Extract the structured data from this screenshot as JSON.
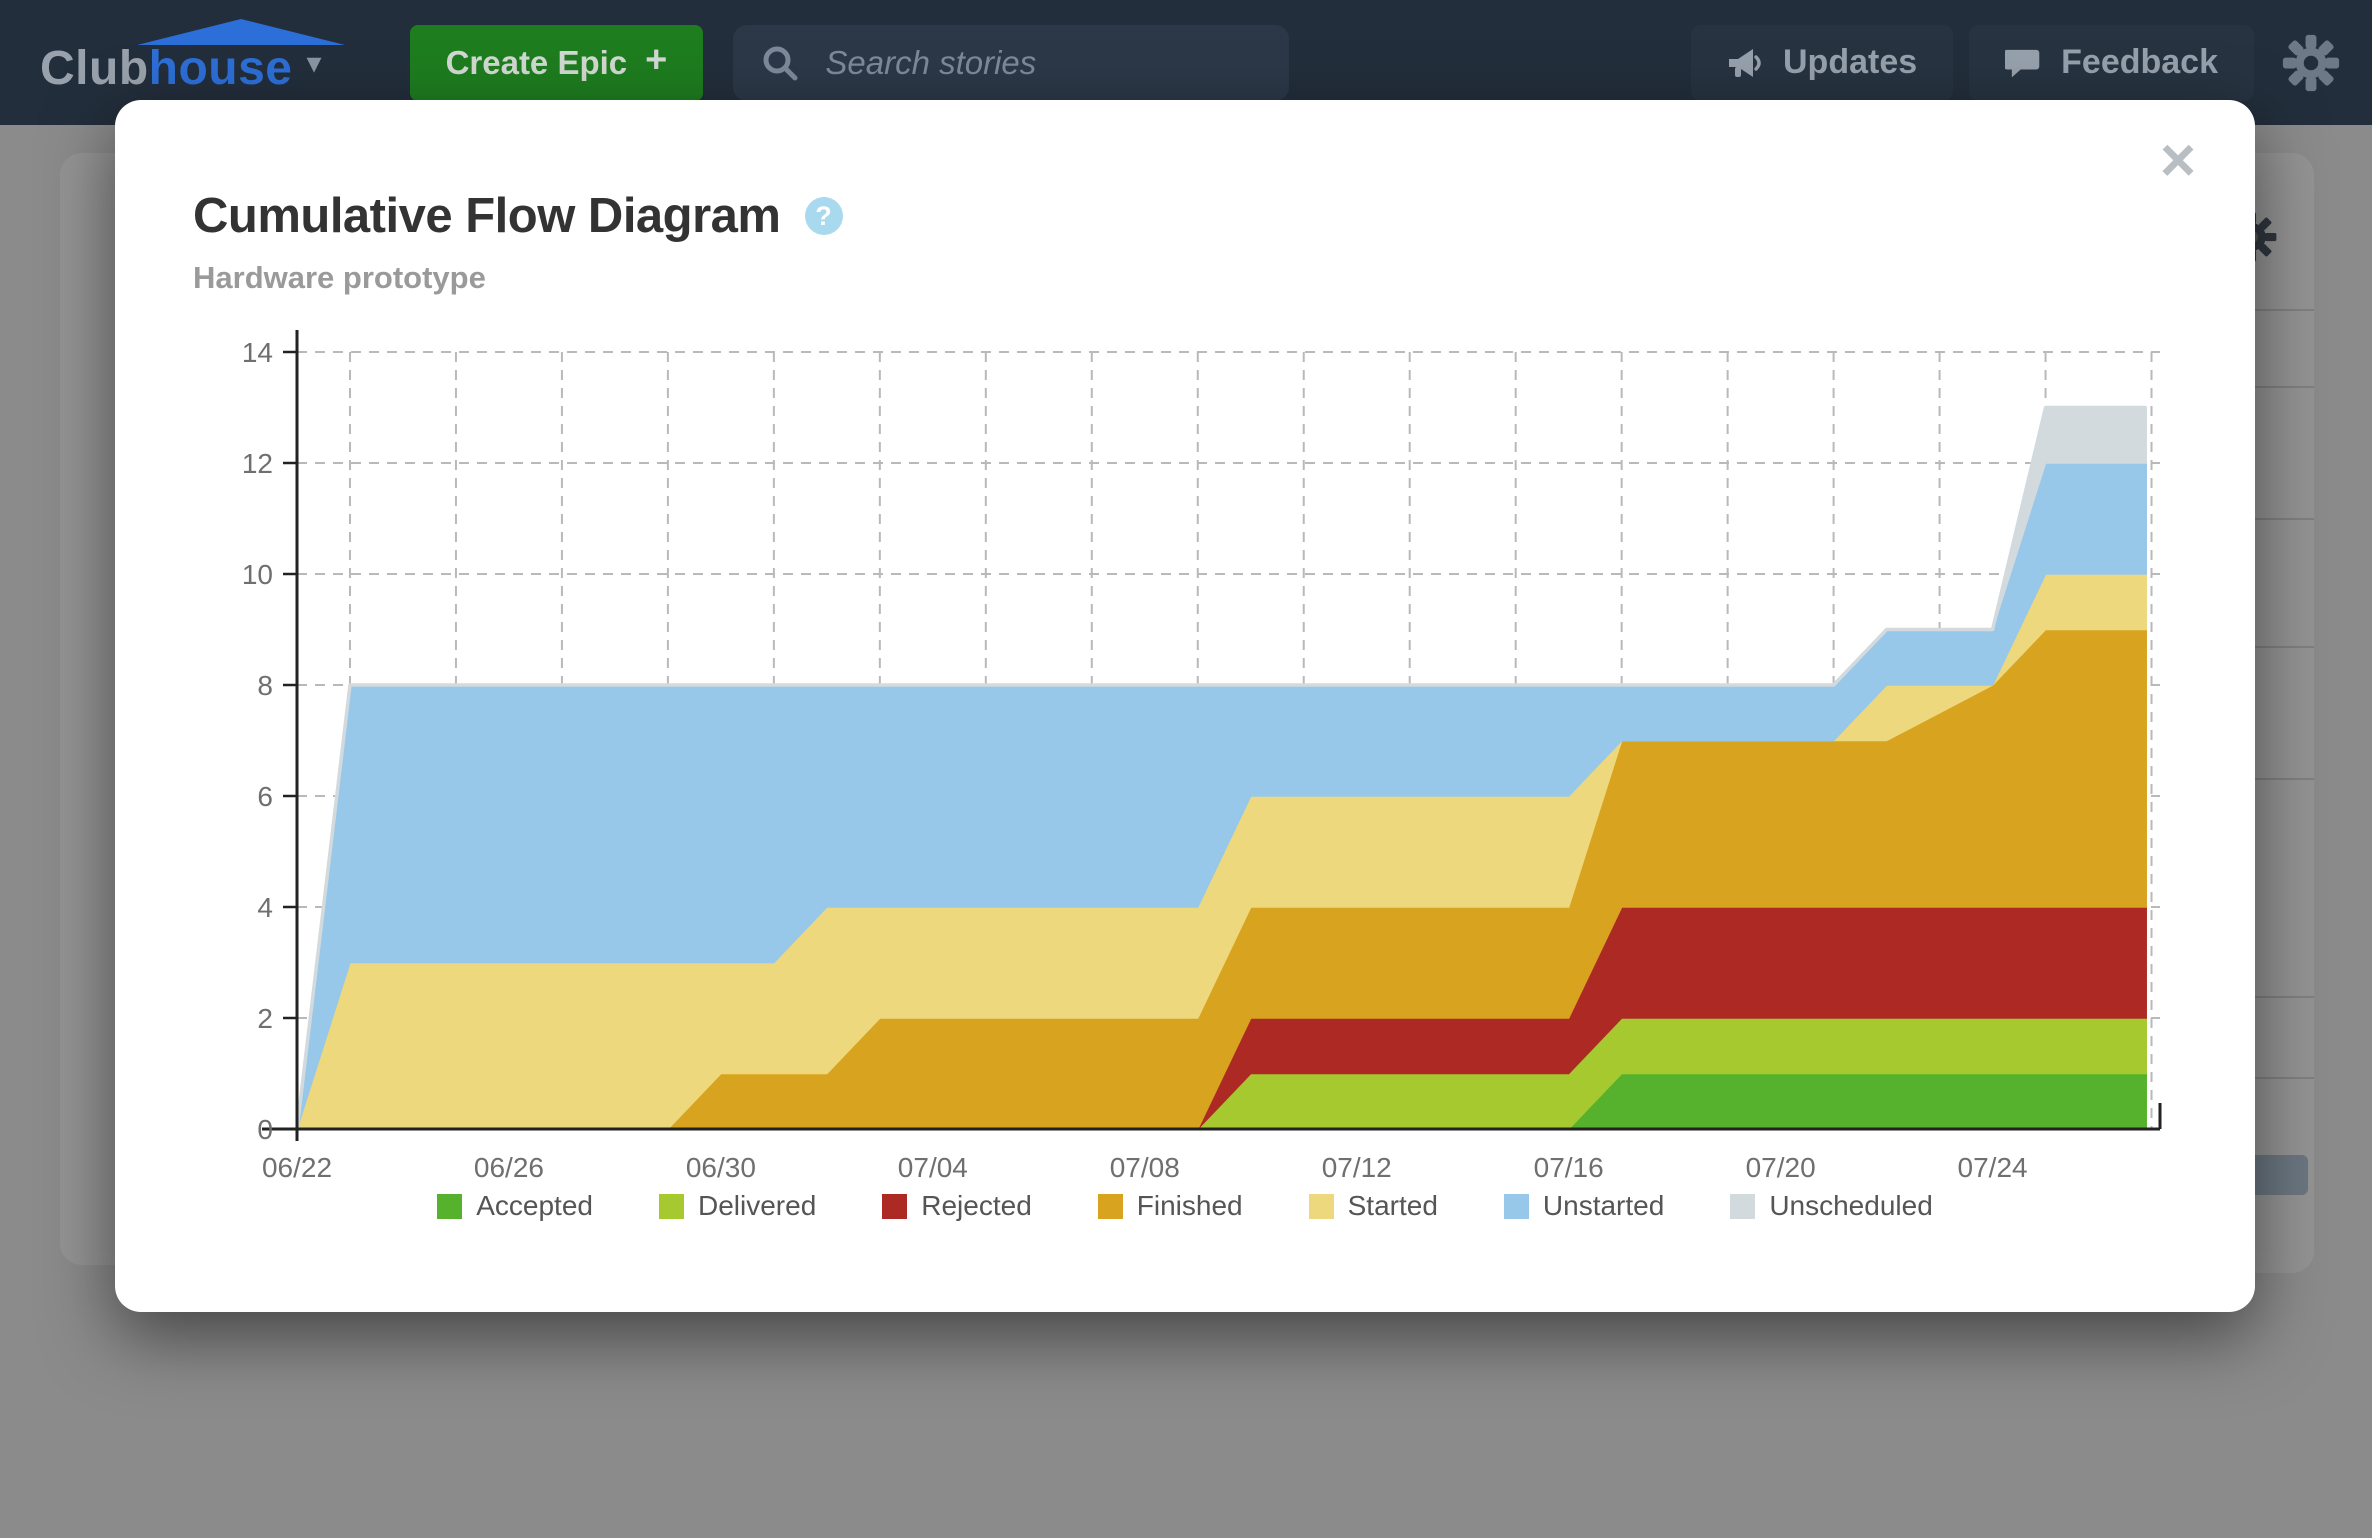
{
  "nav": {
    "logo_part1": "Club",
    "logo_part2": "house",
    "logo_caret": "▾",
    "create_epic_label": "Create Epic",
    "create_epic_plus": "+",
    "search_placeholder": "Search stories",
    "updates_label": "Updates",
    "feedback_label": "Feedback"
  },
  "modal": {
    "title": "Cumulative Flow Diagram",
    "help_glyph": "?",
    "subtitle": "Hardware prototype",
    "close_glyph": "×"
  },
  "colors": {
    "nav_bg": "#232e3c",
    "brand_blue": "#2d6fd8",
    "create_green": "#1e7d1f",
    "help_blue": "#a9d9ef",
    "grid": "#b9b9b9",
    "axis": "#222222",
    "tick_text": "#6f6f6f"
  },
  "chart_data": {
    "type": "area",
    "stacked": true,
    "title": "Cumulative Flow Diagram",
    "subtitle": "Hardware prototype",
    "xlabel": "",
    "ylabel": "",
    "ylim": [
      0,
      14
    ],
    "y_ticks": [
      0,
      2,
      4,
      6,
      8,
      10,
      12,
      14
    ],
    "grid": true,
    "legend_position": "bottom",
    "x_domain_days": [
      0,
      35.16
    ],
    "data_end_day": 34.9,
    "x_gridline_days": [
      1,
      3,
      5,
      7,
      9,
      11,
      13,
      15,
      17,
      19,
      21,
      23,
      25,
      27,
      29,
      31,
      33,
      35
    ],
    "x_tick_labels": [
      {
        "day": 0,
        "label": "06/22"
      },
      {
        "day": 4,
        "label": "06/26"
      },
      {
        "day": 8,
        "label": "06/30"
      },
      {
        "day": 12,
        "label": "07/04"
      },
      {
        "day": 16,
        "label": "07/08"
      },
      {
        "day": 20,
        "label": "07/12"
      },
      {
        "day": 24,
        "label": "07/16"
      },
      {
        "day": 28,
        "label": "07/20"
      },
      {
        "day": 32,
        "label": "07/24"
      }
    ],
    "series": [
      {
        "key": "accepted",
        "name": "Accepted",
        "color": "#56b22d"
      },
      {
        "key": "delivered",
        "name": "Delivered",
        "color": "#a5c92f"
      },
      {
        "key": "rejected",
        "name": "Rejected",
        "color": "#ad2a24"
      },
      {
        "key": "finished",
        "name": "Finished",
        "color": "#d8a31f"
      },
      {
        "key": "started",
        "name": "Started",
        "color": "#edd87d"
      },
      {
        "key": "unstarted",
        "name": "Unstarted",
        "color": "#97c7e9"
      },
      {
        "key": "unscheduled",
        "name": "Unscheduled",
        "color": "#d3dade"
      }
    ],
    "points": [
      {
        "day": 0,
        "date": "06/22",
        "accepted": 0,
        "delivered": 0,
        "rejected": 0,
        "finished": 0,
        "started": 0,
        "unstarted": 0,
        "unscheduled": 0
      },
      {
        "day": 1,
        "date": "06/23",
        "accepted": 0,
        "delivered": 0,
        "rejected": 0,
        "finished": 0,
        "started": 3,
        "unstarted": 5,
        "unscheduled": 0
      },
      {
        "day": 7,
        "date": "06/29",
        "accepted": 0,
        "delivered": 0,
        "rejected": 0,
        "finished": 0,
        "started": 3,
        "unstarted": 5,
        "unscheduled": 0
      },
      {
        "day": 8,
        "date": "06/30",
        "accepted": 0,
        "delivered": 0,
        "rejected": 0,
        "finished": 1,
        "started": 2,
        "unstarted": 5,
        "unscheduled": 0
      },
      {
        "day": 9,
        "date": "07/01",
        "accepted": 0,
        "delivered": 0,
        "rejected": 0,
        "finished": 1,
        "started": 2,
        "unstarted": 5,
        "unscheduled": 0
      },
      {
        "day": 10,
        "date": "07/02",
        "accepted": 0,
        "delivered": 0,
        "rejected": 0,
        "finished": 1,
        "started": 3,
        "unstarted": 4,
        "unscheduled": 0
      },
      {
        "day": 11,
        "date": "07/03",
        "accepted": 0,
        "delivered": 0,
        "rejected": 0,
        "finished": 2,
        "started": 2,
        "unstarted": 4,
        "unscheduled": 0
      },
      {
        "day": 17,
        "date": "07/09",
        "accepted": 0,
        "delivered": 0,
        "rejected": 0,
        "finished": 2,
        "started": 2,
        "unstarted": 4,
        "unscheduled": 0
      },
      {
        "day": 18,
        "date": "07/10",
        "accepted": 0,
        "delivered": 1,
        "rejected": 1,
        "finished": 2,
        "started": 2,
        "unstarted": 2,
        "unscheduled": 0
      },
      {
        "day": 24,
        "date": "07/16",
        "accepted": 0,
        "delivered": 1,
        "rejected": 1,
        "finished": 2,
        "started": 2,
        "unstarted": 2,
        "unscheduled": 0
      },
      {
        "day": 25,
        "date": "07/17",
        "accepted": 1,
        "delivered": 1,
        "rejected": 2,
        "finished": 3,
        "started": 0,
        "unstarted": 1,
        "unscheduled": 0
      },
      {
        "day": 29,
        "date": "07/21",
        "accepted": 1,
        "delivered": 1,
        "rejected": 2,
        "finished": 3,
        "started": 0,
        "unstarted": 1,
        "unscheduled": 0
      },
      {
        "day": 30,
        "date": "07/22",
        "accepted": 1,
        "delivered": 1,
        "rejected": 2,
        "finished": 3,
        "started": 1,
        "unstarted": 1,
        "unscheduled": 0
      },
      {
        "day": 32,
        "date": "07/24",
        "accepted": 1,
        "delivered": 1,
        "rejected": 2,
        "finished": 4,
        "started": 0,
        "unstarted": 1,
        "unscheduled": 0
      },
      {
        "day": 33,
        "date": "07/25",
        "accepted": 1,
        "delivered": 1,
        "rejected": 2,
        "finished": 5,
        "started": 1,
        "unstarted": 2,
        "unscheduled": 1
      },
      {
        "day": 34.9,
        "date": "07/26",
        "accepted": 1,
        "delivered": 1,
        "rejected": 2,
        "finished": 5,
        "started": 1,
        "unstarted": 2,
        "unscheduled": 1
      }
    ]
  }
}
